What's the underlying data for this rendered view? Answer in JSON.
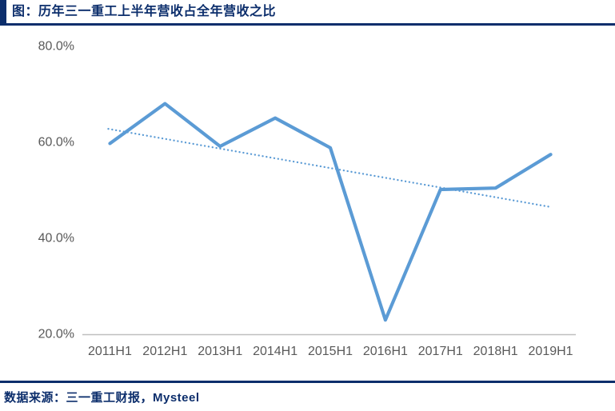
{
  "header": {
    "title": "图：历年三一重工上半年营收占全年营收之比"
  },
  "footer": {
    "source_label": "数据来源：三一重工财报，Mysteel"
  },
  "colors": {
    "navy": "#0C2E6C",
    "line_blue": "#5B9BD5",
    "axis_text": "#595959",
    "axis_line": "#BFBFBF",
    "background": "#FFFFFF"
  },
  "chart_data": {
    "type": "line",
    "title": "历年三一重工上半年营收占全年营收之比",
    "categories": [
      "2011H1",
      "2012H1",
      "2013H1",
      "2014H1",
      "2015H1",
      "2016H1",
      "2017H1",
      "2018H1",
      "2019H1"
    ],
    "series": [
      {
        "name": "上半年营收占全年营收之比",
        "values": [
          59.6,
          67.9,
          59.0,
          64.9,
          58.7,
          22.8,
          50.0,
          50.3,
          57.3
        ]
      }
    ],
    "trendline": {
      "type": "linear",
      "style": "dotted",
      "start_value": 62.6,
      "end_value": 46.4
    },
    "yticks": [
      {
        "value": 80,
        "label": "80.0%"
      },
      {
        "value": 60,
        "label": "60.0%"
      },
      {
        "value": 40,
        "label": "40.0%"
      },
      {
        "value": 20,
        "label": "20.0%"
      }
    ],
    "ylim": [
      20,
      80
    ],
    "xlabel": "",
    "ylabel": "",
    "grid": false,
    "legend": "none"
  }
}
